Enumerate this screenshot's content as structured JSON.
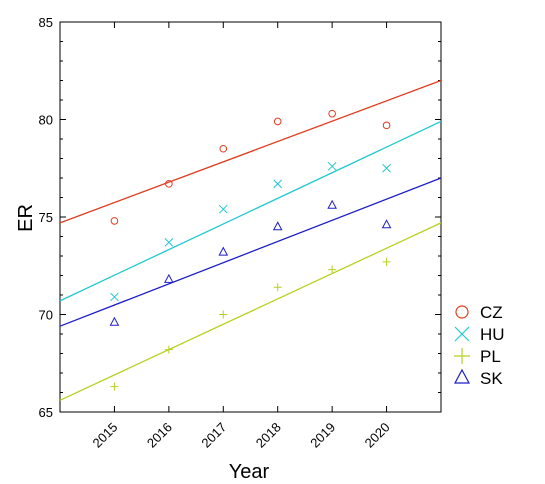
{
  "chart_data": {
    "type": "scatter",
    "xlabel": "Year",
    "ylabel": "ER",
    "xlim": [
      2014.0,
      2021.0
    ],
    "ylim": [
      65,
      85
    ],
    "yticks": [
      65,
      70,
      75,
      80,
      85
    ],
    "xticks": [
      2015,
      2016,
      2017,
      2018,
      2019,
      2020
    ],
    "grid": false,
    "legend_position": "right",
    "series": [
      {
        "name": "CZ",
        "marker": "circle",
        "color": "#e03c1e",
        "x": [
          2015,
          2016,
          2017,
          2018,
          2019,
          2020
        ],
        "y": [
          74.8,
          76.7,
          78.5,
          79.9,
          80.3,
          79.7
        ],
        "fit": {
          "x": [
            2014.0,
            2021.0
          ],
          "y": [
            74.7,
            82.0
          ]
        }
      },
      {
        "name": "HU",
        "marker": "x",
        "color": "#20c8d2",
        "x": [
          2015,
          2016,
          2017,
          2018,
          2019,
          2020
        ],
        "y": [
          70.9,
          73.7,
          75.4,
          76.7,
          77.6,
          77.5
        ],
        "fit": {
          "x": [
            2014.0,
            2021.0
          ],
          "y": [
            70.7,
            79.9
          ]
        }
      },
      {
        "name": "PL",
        "marker": "plus",
        "color": "#b4d21e",
        "x": [
          2015,
          2016,
          2017,
          2018,
          2019,
          2020
        ],
        "y": [
          66.3,
          68.2,
          70.0,
          71.4,
          72.3,
          72.7
        ],
        "fit": {
          "x": [
            2014.0,
            2021.0
          ],
          "y": [
            65.6,
            74.7
          ]
        }
      },
      {
        "name": "SK",
        "marker": "triangle",
        "color": "#1e1ec8",
        "x": [
          2015,
          2016,
          2017,
          2018,
          2019,
          2020
        ],
        "y": [
          69.6,
          71.8,
          73.2,
          74.5,
          75.6,
          74.6
        ],
        "fit": {
          "x": [
            2014.0,
            2021.0
          ],
          "y": [
            69.4,
            77.0
          ]
        }
      }
    ]
  }
}
